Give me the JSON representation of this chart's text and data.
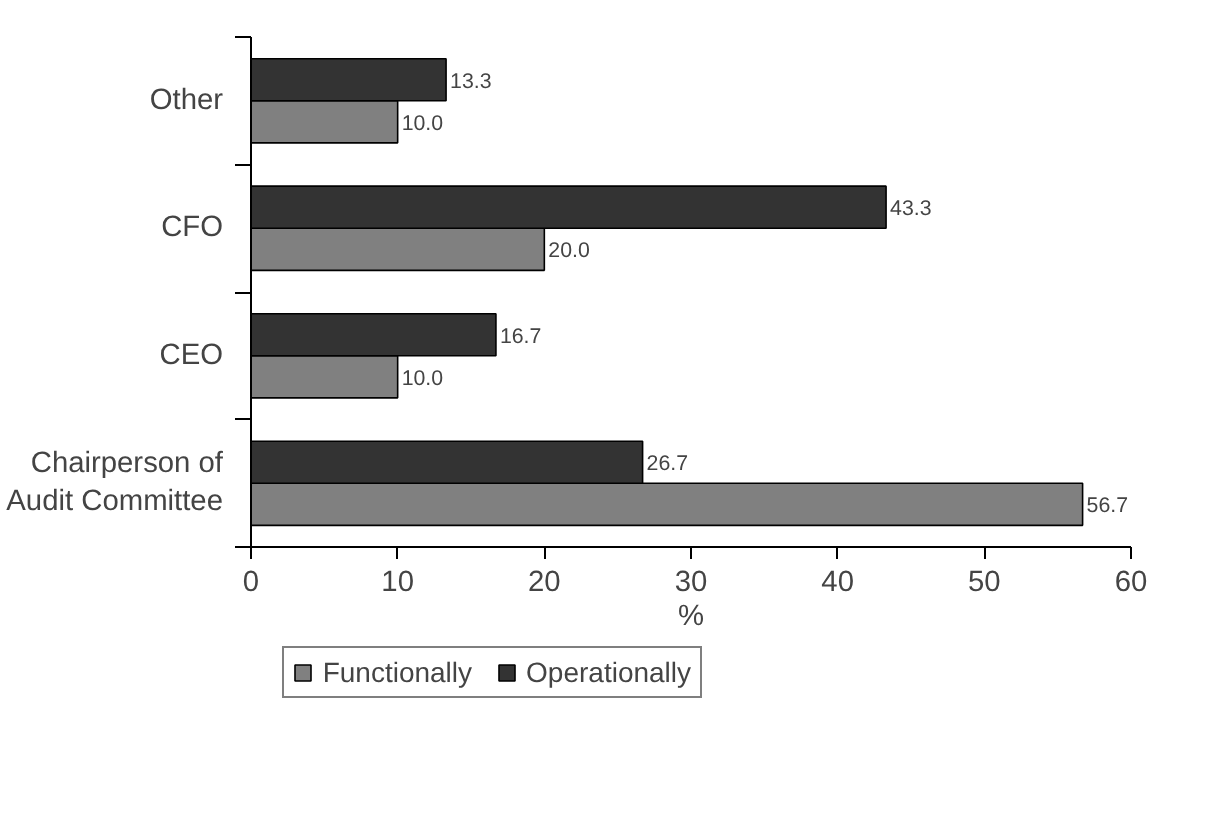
{
  "chart_data": {
    "type": "bar",
    "orientation": "horizontal",
    "xlabel": "%",
    "categories": [
      "Other",
      "CFO",
      "CEO",
      "Chairperson of Audit Committee"
    ],
    "series": [
      {
        "name": "Functionally",
        "color": "#808080",
        "values": [
          10.0,
          20.0,
          10.0,
          56.7
        ],
        "value_labels": [
          "10.0",
          "20.0",
          "10.0",
          "56.7"
        ]
      },
      {
        "name": "Operationally",
        "color": "#333333",
        "values": [
          13.3,
          43.3,
          16.7,
          26.7
        ],
        "value_labels": [
          "13.3",
          "43.3",
          "16.7",
          "26.7"
        ]
      }
    ],
    "xlim": [
      0,
      60
    ],
    "xticks": [
      0,
      10,
      20,
      30,
      40,
      50,
      60
    ],
    "grid": false,
    "legend": "bottom"
  }
}
